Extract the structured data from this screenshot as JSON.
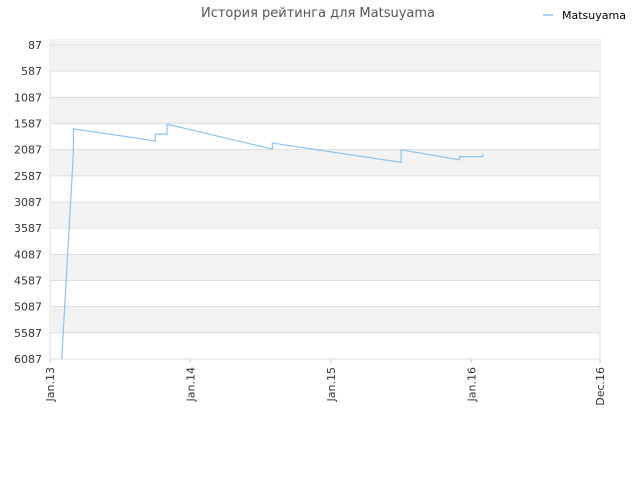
{
  "chart_data": {
    "type": "line",
    "title": "История рейтинга для Matsuyama",
    "x": [
      "2013-02",
      "2013-03",
      "2013-03",
      "2013-10",
      "2013-10",
      "2013-11",
      "2013-11",
      "2014-08",
      "2014-08",
      "2015-07",
      "2015-07",
      "2015-12",
      "2015-12",
      "2016-02",
      "2016-02"
    ],
    "series": [
      {
        "name": "Matsuyama",
        "color": "#8ec2ee",
        "values": [
          6087,
          2150,
          1690,
          1920,
          1790,
          1790,
          1600,
          2075,
          1960,
          2330,
          2090,
          2280,
          2220,
          2220,
          2160
        ]
      }
    ],
    "xlim": [
      "2013-01",
      "2016-12"
    ],
    "xticks": [
      {
        "value": "2013-01",
        "label": "Jan.13"
      },
      {
        "value": "2014-01",
        "label": "Jan.14"
      },
      {
        "value": "2015-01",
        "label": "Jan.15"
      },
      {
        "value": "2016-01",
        "label": "Jan.16"
      },
      {
        "value": "2016-12",
        "label": "Dec.16"
      }
    ],
    "ylim": [
      87,
      6087
    ],
    "y_inverted": true,
    "yticks": [
      87,
      587,
      1087,
      1587,
      2087,
      2587,
      3087,
      3587,
      4087,
      4587,
      5087,
      5587,
      6087
    ],
    "grid": true,
    "legend": "top-right"
  }
}
